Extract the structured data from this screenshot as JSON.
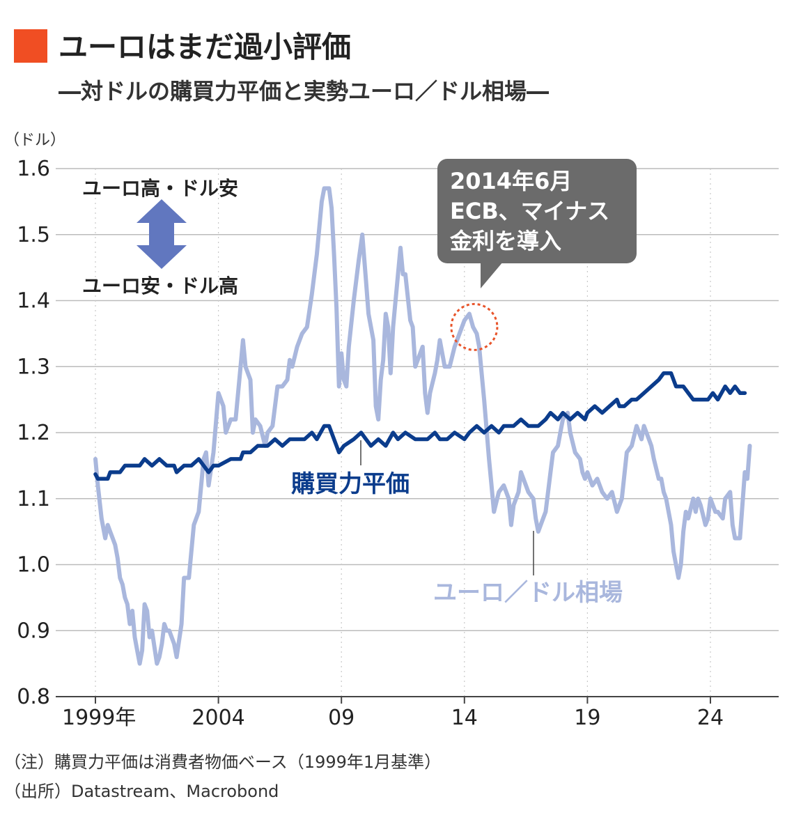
{
  "chart_data": {
    "type": "line",
    "title": "ユーロはまだ過小評価",
    "subtitle": "―対ドルの購買力平価と実勢ユーロ／ドル相場―",
    "y_unit": "（ドル）",
    "ylim": [
      0.8,
      1.6
    ],
    "y_ticks": [
      "1.6",
      "1.5",
      "1.4",
      "1.3",
      "1.2",
      "1.1",
      "1.0",
      "0.9",
      "0.8"
    ],
    "x_ticks": [
      {
        "label": "1999年",
        "year": 1999
      },
      {
        "label": "2004",
        "year": 2004
      },
      {
        "label": "09",
        "year": 2009
      },
      {
        "label": "14",
        "year": 2014
      },
      {
        "label": "19",
        "year": 2019
      },
      {
        "label": "24",
        "year": 2024
      }
    ],
    "grid": true,
    "series": [
      {
        "name": "購買力平価",
        "color": "#0b3c8c",
        "points": [
          [
            1999.0,
            1.137
          ],
          [
            1999.1,
            1.13
          ],
          [
            1999.5,
            1.13
          ],
          [
            1999.6,
            1.14
          ],
          [
            2000.0,
            1.14
          ],
          [
            2000.2,
            1.15
          ],
          [
            2000.8,
            1.15
          ],
          [
            2001.0,
            1.16
          ],
          [
            2001.3,
            1.15
          ],
          [
            2001.6,
            1.16
          ],
          [
            2001.9,
            1.15
          ],
          [
            2002.2,
            1.15
          ],
          [
            2002.3,
            1.14
          ],
          [
            2002.6,
            1.15
          ],
          [
            2002.9,
            1.15
          ],
          [
            2003.2,
            1.16
          ],
          [
            2003.4,
            1.15
          ],
          [
            2003.6,
            1.14
          ],
          [
            2003.8,
            1.15
          ],
          [
            2004.0,
            1.15
          ],
          [
            2004.5,
            1.16
          ],
          [
            2004.9,
            1.16
          ],
          [
            2005.0,
            1.17
          ],
          [
            2005.3,
            1.17
          ],
          [
            2005.6,
            1.18
          ],
          [
            2006.0,
            1.18
          ],
          [
            2006.3,
            1.19
          ],
          [
            2006.6,
            1.18
          ],
          [
            2006.9,
            1.19
          ],
          [
            2007.5,
            1.19
          ],
          [
            2007.8,
            1.2
          ],
          [
            2008.0,
            1.19
          ],
          [
            2008.3,
            1.21
          ],
          [
            2008.5,
            1.21
          ],
          [
            2008.7,
            1.19
          ],
          [
            2008.9,
            1.17
          ],
          [
            2009.1,
            1.18
          ],
          [
            2009.5,
            1.19
          ],
          [
            2009.8,
            1.2
          ],
          [
            2010.0,
            1.19
          ],
          [
            2010.2,
            1.18
          ],
          [
            2010.5,
            1.19
          ],
          [
            2010.8,
            1.18
          ],
          [
            2011.1,
            1.2
          ],
          [
            2011.3,
            1.19
          ],
          [
            2011.6,
            1.2
          ],
          [
            2012.0,
            1.19
          ],
          [
            2012.5,
            1.19
          ],
          [
            2012.8,
            1.2
          ],
          [
            2013.0,
            1.19
          ],
          [
            2013.3,
            1.19
          ],
          [
            2013.6,
            1.2
          ],
          [
            2014.0,
            1.19
          ],
          [
            2014.2,
            1.2
          ],
          [
            2014.5,
            1.21
          ],
          [
            2014.8,
            1.2
          ],
          [
            2015.1,
            1.21
          ],
          [
            2015.4,
            1.2
          ],
          [
            2015.6,
            1.21
          ],
          [
            2016.0,
            1.21
          ],
          [
            2016.3,
            1.22
          ],
          [
            2016.6,
            1.21
          ],
          [
            2017.0,
            1.21
          ],
          [
            2017.3,
            1.22
          ],
          [
            2017.5,
            1.23
          ],
          [
            2017.8,
            1.22
          ],
          [
            2018.0,
            1.23
          ],
          [
            2018.3,
            1.22
          ],
          [
            2018.6,
            1.23
          ],
          [
            2018.9,
            1.22
          ],
          [
            2019.0,
            1.23
          ],
          [
            2019.3,
            1.24
          ],
          [
            2019.6,
            1.23
          ],
          [
            2019.9,
            1.24
          ],
          [
            2020.2,
            1.25
          ],
          [
            2020.3,
            1.24
          ],
          [
            2020.5,
            1.24
          ],
          [
            2020.8,
            1.25
          ],
          [
            2021.0,
            1.25
          ],
          [
            2021.3,
            1.26
          ],
          [
            2021.6,
            1.27
          ],
          [
            2021.9,
            1.28
          ],
          [
            2022.1,
            1.29
          ],
          [
            2022.4,
            1.29
          ],
          [
            2022.6,
            1.27
          ],
          [
            2022.9,
            1.27
          ],
          [
            2023.1,
            1.26
          ],
          [
            2023.3,
            1.25
          ],
          [
            2023.6,
            1.25
          ],
          [
            2023.9,
            1.25
          ],
          [
            2024.1,
            1.26
          ],
          [
            2024.3,
            1.25
          ],
          [
            2024.6,
            1.27
          ],
          [
            2024.8,
            1.26
          ],
          [
            2025.0,
            1.27
          ],
          [
            2025.2,
            1.26
          ],
          [
            2025.4,
            1.26
          ]
        ]
      },
      {
        "name": "ユーロ／ドル相場",
        "color": "#a9b7dd",
        "points": [
          [
            1999.0,
            1.16
          ],
          [
            1999.1,
            1.12
          ],
          [
            1999.25,
            1.07
          ],
          [
            1999.4,
            1.04
          ],
          [
            1999.5,
            1.06
          ],
          [
            1999.6,
            1.05
          ],
          [
            1999.8,
            1.03
          ],
          [
            1999.9,
            1.01
          ],
          [
            2000.0,
            0.98
          ],
          [
            2000.1,
            0.97
          ],
          [
            2000.2,
            0.95
          ],
          [
            2000.3,
            0.94
          ],
          [
            2000.4,
            0.91
          ],
          [
            2000.5,
            0.93
          ],
          [
            2000.6,
            0.89
          ],
          [
            2000.7,
            0.87
          ],
          [
            2000.8,
            0.85
          ],
          [
            2000.9,
            0.87
          ],
          [
            2001.0,
            0.94
          ],
          [
            2001.1,
            0.93
          ],
          [
            2001.2,
            0.89
          ],
          [
            2001.3,
            0.9
          ],
          [
            2001.5,
            0.85
          ],
          [
            2001.6,
            0.86
          ],
          [
            2001.7,
            0.88
          ],
          [
            2001.8,
            0.91
          ],
          [
            2001.9,
            0.9
          ],
          [
            2002.0,
            0.9
          ],
          [
            2002.2,
            0.88
          ],
          [
            2002.3,
            0.86
          ],
          [
            2002.5,
            0.91
          ],
          [
            2002.6,
            0.98
          ],
          [
            2002.7,
            0.98
          ],
          [
            2002.8,
            0.98
          ],
          [
            2003.0,
            1.06
          ],
          [
            2003.2,
            1.08
          ],
          [
            2003.4,
            1.16
          ],
          [
            2003.5,
            1.17
          ],
          [
            2003.6,
            1.12
          ],
          [
            2003.8,
            1.17
          ],
          [
            2004.0,
            1.26
          ],
          [
            2004.2,
            1.24
          ],
          [
            2004.3,
            1.2
          ],
          [
            2004.5,
            1.22
          ],
          [
            2004.7,
            1.22
          ],
          [
            2004.9,
            1.3
          ],
          [
            2005.0,
            1.34
          ],
          [
            2005.1,
            1.3
          ],
          [
            2005.3,
            1.28
          ],
          [
            2005.4,
            1.2
          ],
          [
            2005.5,
            1.22
          ],
          [
            2005.7,
            1.21
          ],
          [
            2005.9,
            1.18
          ],
          [
            2006.0,
            1.2
          ],
          [
            2006.2,
            1.21
          ],
          [
            2006.4,
            1.27
          ],
          [
            2006.6,
            1.27
          ],
          [
            2006.8,
            1.28
          ],
          [
            2006.9,
            1.31
          ],
          [
            2007.0,
            1.3
          ],
          [
            2007.2,
            1.33
          ],
          [
            2007.4,
            1.35
          ],
          [
            2007.6,
            1.36
          ],
          [
            2007.8,
            1.41
          ],
          [
            2008.0,
            1.47
          ],
          [
            2008.2,
            1.55
          ],
          [
            2008.3,
            1.57
          ],
          [
            2008.5,
            1.57
          ],
          [
            2008.6,
            1.54
          ],
          [
            2008.7,
            1.47
          ],
          [
            2008.8,
            1.39
          ],
          [
            2008.9,
            1.27
          ],
          [
            2009.0,
            1.32
          ],
          [
            2009.1,
            1.28
          ],
          [
            2009.2,
            1.27
          ],
          [
            2009.3,
            1.33
          ],
          [
            2009.5,
            1.4
          ],
          [
            2009.7,
            1.46
          ],
          [
            2009.85,
            1.5
          ],
          [
            2010.0,
            1.43
          ],
          [
            2010.1,
            1.38
          ],
          [
            2010.2,
            1.36
          ],
          [
            2010.3,
            1.34
          ],
          [
            2010.4,
            1.24
          ],
          [
            2010.5,
            1.22
          ],
          [
            2010.6,
            1.28
          ],
          [
            2010.7,
            1.31
          ],
          [
            2010.8,
            1.38
          ],
          [
            2010.9,
            1.36
          ],
          [
            2011.0,
            1.29
          ],
          [
            2011.1,
            1.36
          ],
          [
            2011.2,
            1.4
          ],
          [
            2011.4,
            1.48
          ],
          [
            2011.5,
            1.44
          ],
          [
            2011.6,
            1.44
          ],
          [
            2011.8,
            1.37
          ],
          [
            2011.9,
            1.36
          ],
          [
            2012.0,
            1.3
          ],
          [
            2012.1,
            1.31
          ],
          [
            2012.3,
            1.33
          ],
          [
            2012.4,
            1.26
          ],
          [
            2012.5,
            1.23
          ],
          [
            2012.6,
            1.26
          ],
          [
            2012.8,
            1.29
          ],
          [
            2012.9,
            1.31
          ],
          [
            2013.0,
            1.34
          ],
          [
            2013.2,
            1.3
          ],
          [
            2013.4,
            1.3
          ],
          [
            2013.6,
            1.33
          ],
          [
            2013.8,
            1.35
          ],
          [
            2014.0,
            1.37
          ],
          [
            2014.2,
            1.38
          ],
          [
            2014.35,
            1.36
          ],
          [
            2014.5,
            1.35
          ],
          [
            2014.6,
            1.33
          ],
          [
            2014.7,
            1.29
          ],
          [
            2014.8,
            1.25
          ],
          [
            2015.0,
            1.16
          ],
          [
            2015.1,
            1.12
          ],
          [
            2015.2,
            1.08
          ],
          [
            2015.4,
            1.11
          ],
          [
            2015.6,
            1.12
          ],
          [
            2015.8,
            1.1
          ],
          [
            2015.9,
            1.06
          ],
          [
            2016.0,
            1.09
          ],
          [
            2016.2,
            1.11
          ],
          [
            2016.3,
            1.14
          ],
          [
            2016.5,
            1.12
          ],
          [
            2016.6,
            1.11
          ],
          [
            2016.8,
            1.1
          ],
          [
            2016.9,
            1.07
          ],
          [
            2017.0,
            1.05
          ],
          [
            2017.2,
            1.07
          ],
          [
            2017.3,
            1.08
          ],
          [
            2017.5,
            1.14
          ],
          [
            2017.6,
            1.17
          ],
          [
            2017.8,
            1.18
          ],
          [
            2017.9,
            1.2
          ],
          [
            2018.0,
            1.22
          ],
          [
            2018.2,
            1.23
          ],
          [
            2018.3,
            1.2
          ],
          [
            2018.5,
            1.17
          ],
          [
            2018.7,
            1.16
          ],
          [
            2018.8,
            1.14
          ],
          [
            2018.9,
            1.13
          ],
          [
            2019.0,
            1.14
          ],
          [
            2019.2,
            1.12
          ],
          [
            2019.4,
            1.13
          ],
          [
            2019.6,
            1.11
          ],
          [
            2019.8,
            1.1
          ],
          [
            2020.0,
            1.11
          ],
          [
            2020.2,
            1.08
          ],
          [
            2020.4,
            1.1
          ],
          [
            2020.6,
            1.17
          ],
          [
            2020.8,
            1.18
          ],
          [
            2021.0,
            1.21
          ],
          [
            2021.2,
            1.19
          ],
          [
            2021.3,
            1.21
          ],
          [
            2021.5,
            1.19
          ],
          [
            2021.6,
            1.18
          ],
          [
            2021.7,
            1.16
          ],
          [
            2021.9,
            1.13
          ],
          [
            2022.0,
            1.13
          ],
          [
            2022.1,
            1.11
          ],
          [
            2022.2,
            1.1
          ],
          [
            2022.4,
            1.06
          ],
          [
            2022.5,
            1.02
          ],
          [
            2022.7,
            0.98
          ],
          [
            2022.8,
            1.0
          ],
          [
            2022.9,
            1.05
          ],
          [
            2023.0,
            1.08
          ],
          [
            2023.1,
            1.07
          ],
          [
            2023.3,
            1.1
          ],
          [
            2023.4,
            1.08
          ],
          [
            2023.5,
            1.1
          ],
          [
            2023.6,
            1.09
          ],
          [
            2023.8,
            1.06
          ],
          [
            2023.9,
            1.07
          ],
          [
            2024.0,
            1.1
          ],
          [
            2024.2,
            1.08
          ],
          [
            2024.3,
            1.08
          ],
          [
            2024.5,
            1.07
          ],
          [
            2024.6,
            1.1
          ],
          [
            2024.8,
            1.11
          ],
          [
            2024.9,
            1.06
          ],
          [
            2025.0,
            1.04
          ],
          [
            2025.1,
            1.04
          ],
          [
            2025.2,
            1.04
          ],
          [
            2025.4,
            1.14
          ],
          [
            2025.5,
            1.13
          ],
          [
            2025.6,
            1.18
          ]
        ]
      }
    ],
    "series_labels": {
      "ppp": "購買力平価",
      "spot": "ユーロ／ドル相場"
    },
    "direction_note": {
      "top": "ユーロ高・ドル安",
      "bottom": "ユーロ安・ドル高"
    },
    "callout": {
      "lines": [
        "2014年6月",
        "ECB、マイナス",
        "金利を導入"
      ],
      "year": 2014.4,
      "value": 1.36
    },
    "notes": [
      "（注）購買力平価は消費者物価ベース（1999年1月基準）",
      "（出所）Datastream、Macrobond"
    ]
  },
  "colors": {
    "title_square": "#f04e23",
    "ppp_line": "#0b3c8c",
    "spot_line": "#a9b7dd",
    "arrow": "#6177bf",
    "callout_bg": "#6b6b6b",
    "callout_circle": "#e8542a",
    "grid": "#bbbbbb",
    "axis": "#444444"
  }
}
